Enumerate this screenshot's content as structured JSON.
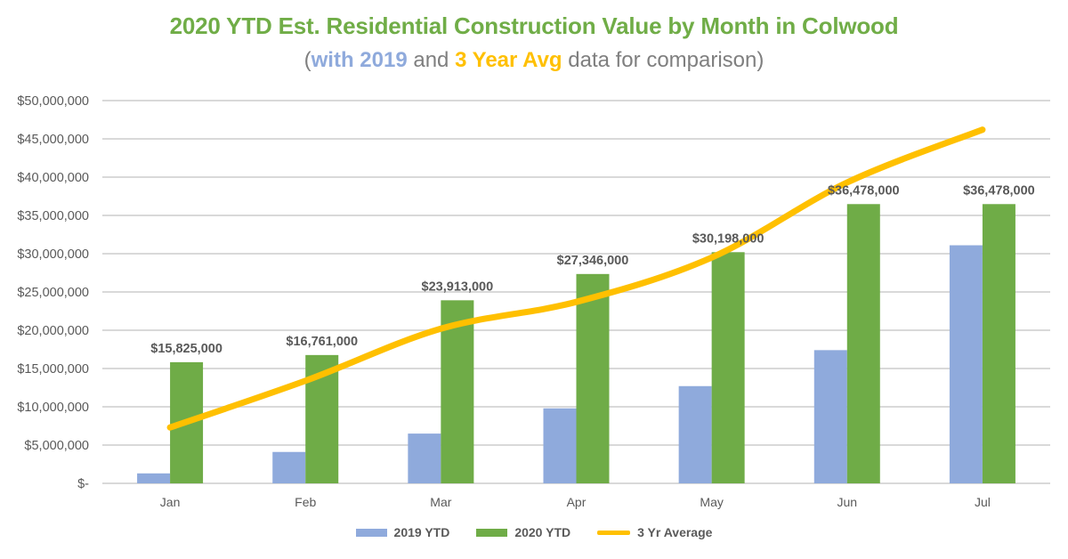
{
  "background": "#FFFFFF",
  "title": {
    "text": "2020 YTD Est. Residential Construction Value by Month in Colwood",
    "color": "#70AD47"
  },
  "subtitle": {
    "segments": [
      {
        "text": "(",
        "color": "#7F7F7F",
        "bold": false
      },
      {
        "text": "with 2019",
        "color": "#8FAADC",
        "bold": true
      },
      {
        "text": " and ",
        "color": "#7F7F7F",
        "bold": false
      },
      {
        "text": "3 Year Avg",
        "color": "#FFC000",
        "bold": true
      },
      {
        "text": " data for comparison)",
        "color": "#7F7F7F",
        "bold": false
      }
    ]
  },
  "legend": {
    "text_color": "#595959"
  },
  "chart_data": {
    "type": "combo-bar-line",
    "title": "2020 YTD Est. Residential Construction Value by Month in Colwood",
    "subtitle": "(with 2019 and 3 Year Avg data for comparison)",
    "categories": [
      "Jan",
      "Feb",
      "Mar",
      "Apr",
      "May",
      "Jun",
      "Jul"
    ],
    "series": [
      {
        "name": "2019 YTD",
        "type": "bar",
        "color": "#8FAADC",
        "values": [
          1300000,
          4100000,
          6500000,
          9800000,
          12700000,
          17400000,
          31100000
        ]
      },
      {
        "name": "2020 YTD",
        "type": "bar",
        "color": "#6FAC47",
        "values": [
          15825000,
          16761000,
          23913000,
          27346000,
          30198000,
          36478000,
          36478000
        ],
        "data_labels": [
          "$15,825,000",
          "$16,761,000",
          "$23,913,000",
          "$27,346,000",
          "$30,198,000",
          "$36,478,000",
          "$36,478,000"
        ]
      },
      {
        "name": "3 Yr Average",
        "type": "line",
        "smooth": true,
        "color": "#FFC000",
        "values": [
          7300000,
          13400000,
          20200000,
          23700000,
          29500000,
          39300000,
          46200000
        ]
      }
    ],
    "xlabel": "",
    "ylabel": "",
    "ylim": [
      0,
      50000000
    ],
    "ytick_step": 5000000,
    "ytick_labels": [
      "$-",
      "$5,000,000",
      "$10,000,000",
      "$15,000,000",
      "$20,000,000",
      "$25,000,000",
      "$30,000,000",
      "$35,000,000",
      "$40,000,000",
      "$45,000,000",
      "$50,000,000"
    ],
    "grid": true,
    "grid_color": "#D9D9D9",
    "axis_label_color": "#595959",
    "data_label_color": "#595959",
    "legend_position": "bottom"
  }
}
